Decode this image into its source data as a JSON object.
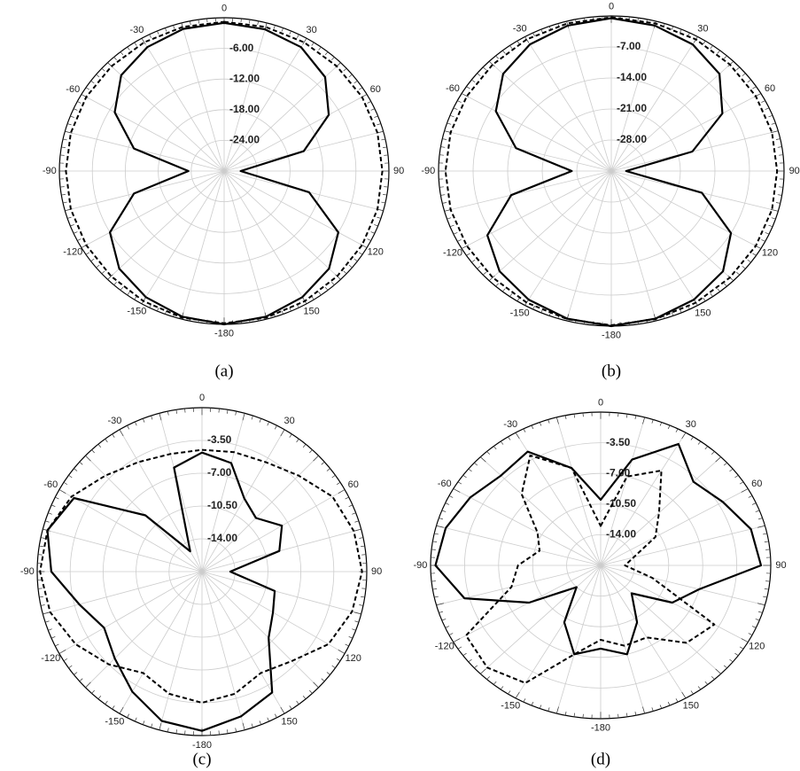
{
  "chart_data": [
    {
      "type": "polar",
      "caption": "(a)",
      "rlim": [
        -30,
        0
      ],
      "rticks": [
        {
          "value": -6,
          "label": "-6.00"
        },
        {
          "value": -12,
          "label": "-12.00"
        },
        {
          "value": -18,
          "label": "-18.00"
        },
        {
          "value": -24,
          "label": "-24.00"
        }
      ],
      "thetaticks": [
        0,
        30,
        60,
        90,
        120,
        150,
        -180,
        -150,
        -120,
        -90,
        -60,
        -30
      ],
      "theta": [
        0,
        15,
        30,
        45,
        60,
        75,
        90,
        105,
        120,
        135,
        150,
        165,
        180,
        195,
        210,
        225,
        240,
        255,
        270,
        285,
        300,
        315,
        330,
        345
      ],
      "series": [
        {
          "color": "#000000",
          "dashed": false,
          "values": [
            -1,
            -1.3,
            -2,
            -4,
            -8,
            -15,
            -27,
            -14,
            -6,
            -3,
            -1.5,
            -0.5,
            0,
            -0.5,
            -1.5,
            -3,
            -6,
            -13,
            -23.5,
            -13,
            -7,
            -3.5,
            -2,
            -1.2
          ]
        },
        {
          "color": "#000000",
          "dashed": true,
          "values": [
            -0.8,
            -0.8,
            -0.9,
            -1,
            -1,
            -1.1,
            -1.2,
            -1.1,
            -1,
            -0.9,
            -0.6,
            -0.3,
            -0.2,
            -0.3,
            -0.6,
            -0.9,
            -1,
            -1.1,
            -1.2,
            -1.1,
            -1,
            -1,
            -0.9,
            -0.8
          ]
        }
      ]
    },
    {
      "type": "polar",
      "caption": "(b)",
      "rlim": [
        -35,
        0
      ],
      "rticks": [
        {
          "value": -7,
          "label": "-7.00"
        },
        {
          "value": -14,
          "label": "-14.00"
        },
        {
          "value": -21,
          "label": "-21.00"
        },
        {
          "value": -28,
          "label": "-28.00"
        }
      ],
      "thetaticks": [
        0,
        30,
        60,
        90,
        120,
        150,
        -180,
        -150,
        -120,
        -90,
        -60,
        -30
      ],
      "theta": [
        0,
        15,
        30,
        45,
        60,
        75,
        90,
        105,
        120,
        135,
        150,
        165,
        180,
        195,
        210,
        225,
        240,
        255,
        270,
        285,
        300,
        315,
        330,
        345
      ],
      "series": [
        {
          "color": "#000000",
          "dashed": false,
          "values": [
            -0.5,
            -1,
            -2,
            -4,
            -9,
            -18,
            -32,
            -16,
            -7,
            -3,
            -1.5,
            -0.5,
            0,
            -0.5,
            -1.5,
            -3,
            -6,
            -14,
            -27,
            -15,
            -8,
            -4,
            -2,
            -1
          ]
        },
        {
          "color": "#000000",
          "dashed": true,
          "values": [
            -0.3,
            -0.5,
            -0.7,
            -1,
            -1.2,
            -1.3,
            -1.4,
            -1.3,
            -1.2,
            -1,
            -0.7,
            -0.4,
            -0.2,
            -0.4,
            -0.7,
            -1,
            -1.2,
            -1.3,
            -1.4,
            -1.3,
            -1.2,
            -1,
            -0.7,
            -0.5
          ]
        }
      ]
    },
    {
      "type": "polar",
      "caption": "(c)",
      "rlim": [
        -17.5,
        0
      ],
      "rticks": [
        {
          "value": -3.5,
          "label": "-3.50"
        },
        {
          "value": -7,
          "label": "-7.00"
        },
        {
          "value": -10.5,
          "label": "-10.50"
        },
        {
          "value": -14,
          "label": "-14.00"
        }
      ],
      "thetaticks": [
        0,
        30,
        60,
        90,
        120,
        150,
        -180,
        -150,
        -120,
        -90,
        -60,
        -30
      ],
      "theta": [
        0,
        15,
        30,
        45,
        60,
        75,
        90,
        105,
        120,
        135,
        150,
        165,
        180,
        195,
        210,
        225,
        240,
        255,
        270,
        285,
        300,
        315,
        330,
        345
      ],
      "series": [
        {
          "color": "#000000",
          "dashed": false,
          "values": [
            -4.8,
            -5.5,
            -8.5,
            -9.4,
            -7.7,
            -9,
            -14.5,
            -9.5,
            -8.8,
            -7.5,
            -2.6,
            -1.5,
            -0.5,
            -1,
            -2.7,
            -4.4,
            -5.5,
            -4,
            -1.5,
            -0.5,
            -1.8,
            -9,
            -15,
            -6
          ]
        },
        {
          "color": "#000000",
          "dashed": true,
          "values": [
            -4.5,
            -4.3,
            -4,
            -3,
            -1.5,
            -0.8,
            -0.5,
            -1,
            -2,
            -4,
            -5,
            -4,
            -3.5,
            -4,
            -5,
            -3.5,
            -2,
            -0.8,
            -0.3,
            -0.5,
            -1.5,
            -3,
            -4,
            -4.5
          ]
        }
      ]
    },
    {
      "type": "polar",
      "caption": "(d)",
      "rlim": [
        -17.5,
        0
      ],
      "rticks": [
        {
          "value": -3.5,
          "label": "-3.50"
        },
        {
          "value": -7,
          "label": "-7.00"
        },
        {
          "value": -10.5,
          "label": "-10.50"
        },
        {
          "value": -14,
          "label": "-14.00"
        }
      ],
      "thetaticks": [
        0,
        30,
        60,
        90,
        120,
        150,
        -180,
        -150,
        -120,
        -90,
        -60,
        -30
      ],
      "theta": [
        0,
        15,
        30,
        45,
        60,
        75,
        90,
        105,
        120,
        135,
        150,
        165,
        180,
        195,
        210,
        225,
        240,
        255,
        270,
        285,
        300,
        315,
        330,
        345
      ],
      "series": [
        {
          "color": "#000000",
          "dashed": false,
          "values": [
            -10,
            -5,
            -1.5,
            -4,
            -3,
            -1.5,
            -1,
            -7,
            -9,
            -13,
            -10,
            -7,
            -8,
            -7,
            -10,
            -14,
            -9,
            -3,
            -0.5,
            -1,
            -2,
            -3,
            -2.5,
            -6
          ]
        },
        {
          "color": "#000000",
          "dashed": true,
          "values": [
            -13,
            -7,
            -5,
            -9,
            -11,
            -14,
            -15,
            -12,
            -4,
            -5,
            -8,
            -8,
            -9,
            -7,
            -2,
            -1,
            -1.5,
            -8,
            -9,
            -11,
            -10,
            -6,
            -3,
            -6
          ]
        }
      ]
    }
  ]
}
